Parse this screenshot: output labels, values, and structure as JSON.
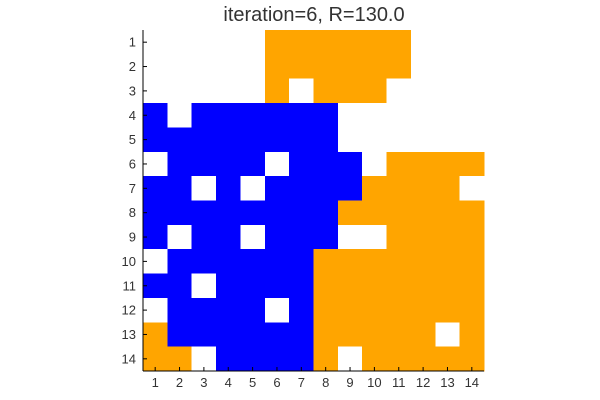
{
  "title": "iteration=6, R=130.0",
  "colors": {
    "empty": "#ffffff",
    "blue": "#0000ff",
    "orange": "#ffa500",
    "axis": "#000000",
    "text": "#333333"
  },
  "chart_data": {
    "type": "heatmap",
    "title": "iteration=6, R=130.0",
    "x_ticks": [
      "1",
      "2",
      "3",
      "4",
      "5",
      "6",
      "7",
      "8",
      "9",
      "10",
      "11",
      "12",
      "13",
      "14"
    ],
    "y_ticks": [
      "1",
      "2",
      "3",
      "4",
      "5",
      "6",
      "7",
      "8",
      "9",
      "10",
      "11",
      "12",
      "13",
      "14"
    ],
    "legend": {
      "0": "empty",
      "1": "blue",
      "2": "orange"
    },
    "grid": [
      [
        0,
        0,
        0,
        0,
        0,
        2,
        2,
        2,
        2,
        2,
        2,
        0,
        0,
        0
      ],
      [
        0,
        0,
        0,
        0,
        0,
        2,
        2,
        2,
        2,
        2,
        2,
        0,
        0,
        0
      ],
      [
        0,
        0,
        0,
        0,
        0,
        2,
        0,
        2,
        2,
        2,
        0,
        0,
        0,
        0
      ],
      [
        1,
        0,
        1,
        1,
        1,
        1,
        1,
        1,
        0,
        0,
        0,
        0,
        0,
        0
      ],
      [
        1,
        1,
        1,
        1,
        1,
        1,
        1,
        1,
        0,
        0,
        0,
        0,
        0,
        0
      ],
      [
        0,
        1,
        1,
        1,
        1,
        0,
        1,
        1,
        1,
        0,
        2,
        2,
        2,
        2
      ],
      [
        1,
        1,
        0,
        1,
        0,
        1,
        1,
        1,
        1,
        2,
        2,
        2,
        2,
        0
      ],
      [
        1,
        1,
        1,
        1,
        1,
        1,
        1,
        1,
        2,
        2,
        2,
        2,
        2,
        2
      ],
      [
        1,
        0,
        1,
        1,
        0,
        1,
        1,
        1,
        0,
        0,
        2,
        2,
        2,
        2
      ],
      [
        0,
        1,
        1,
        1,
        1,
        1,
        1,
        2,
        2,
        2,
        2,
        2,
        2,
        2
      ],
      [
        1,
        1,
        0,
        1,
        1,
        1,
        1,
        2,
        2,
        2,
        2,
        2,
        2,
        2
      ],
      [
        0,
        1,
        1,
        1,
        1,
        0,
        1,
        2,
        2,
        2,
        2,
        2,
        2,
        2
      ],
      [
        2,
        1,
        1,
        1,
        1,
        1,
        1,
        2,
        2,
        2,
        2,
        2,
        0,
        2
      ],
      [
        2,
        2,
        0,
        1,
        1,
        1,
        1,
        2,
        0,
        2,
        2,
        2,
        2,
        2
      ]
    ]
  }
}
